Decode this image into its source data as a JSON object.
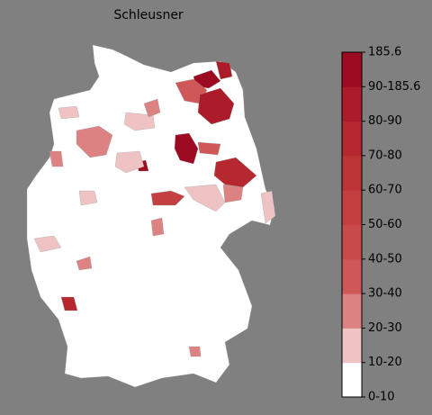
{
  "title": "Schleusner",
  "legend": {
    "labels": [
      "0-10",
      "10-20",
      "20-30",
      "30-40",
      "40-50",
      "50-60",
      "60-70",
      "70-80",
      "80-90",
      "90-185.6",
      "185.6"
    ],
    "colors": [
      "#ffffff",
      "#efc3c3",
      "#dc8282",
      "#cf5757",
      "#c94a4a",
      "#c44040",
      "#bd3437",
      "#b5282f",
      "#ab1b2a",
      "#9c0b22"
    ]
  }
}
